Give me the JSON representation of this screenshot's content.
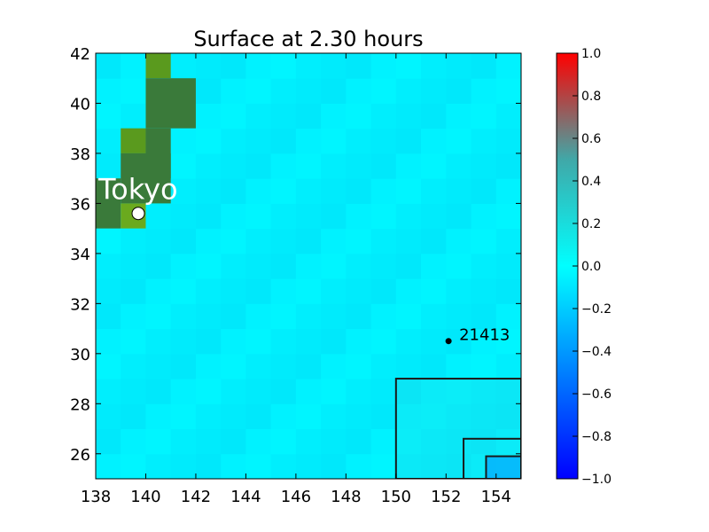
{
  "chart_data": {
    "type": "heatmap",
    "title": "Surface at 2.30 hours",
    "xlabel": "",
    "ylabel": "",
    "xlim": [
      138,
      155
    ],
    "ylim": [
      25,
      42
    ],
    "xticks": [
      "138",
      "140",
      "142",
      "144",
      "146",
      "148",
      "150",
      "152",
      "154"
    ],
    "yticks": [
      "26",
      "28",
      "30",
      "32",
      "34",
      "36",
      "38",
      "40",
      "42"
    ],
    "colorbar": {
      "range": [
        -1.0,
        1.0
      ],
      "ticks": [
        "1.0",
        "0.8",
        "0.6",
        "0.4",
        "0.2",
        "0.0",
        "−0.2",
        "−0.4",
        "−0.6",
        "−0.8",
        "−1.0"
      ],
      "colors": {
        "min": "#0000ff",
        "mid": "#00ffff",
        "max": "#ff0000"
      }
    },
    "background_color": "#00f0ff",
    "land_cells": [
      {
        "x0": 140,
        "x1": 141,
        "y0": 41,
        "y1": 42,
        "color": "#5a9a1e"
      },
      {
        "x0": 140,
        "x1": 142,
        "y0": 39,
        "y1": 41,
        "color": "#3a7a3a"
      },
      {
        "x0": 139,
        "x1": 140,
        "y0": 38,
        "y1": 39,
        "color": "#5a9a1e"
      },
      {
        "x0": 140,
        "x1": 141,
        "y0": 37,
        "y1": 39,
        "color": "#3a7a3a"
      },
      {
        "x0": 139,
        "x1": 141,
        "y0": 36,
        "y1": 38,
        "color": "#3a7a3a"
      },
      {
        "x0": 138,
        "x1": 139,
        "y0": 35,
        "y1": 37,
        "color": "#3a7a3a"
      },
      {
        "x0": 139,
        "x1": 140,
        "y0": 35,
        "y1": 36,
        "color": "#6aaa1e"
      }
    ],
    "annotations": [
      {
        "label": "Tokyo",
        "x": 139.7,
        "y": 35.6,
        "marker": "circle-large",
        "text_color": "#ffffff"
      },
      {
        "label": "21413",
        "x": 152.1,
        "y": 30.5,
        "marker": "dot",
        "text_color": "#000000"
      }
    ],
    "grid_boxes": [
      {
        "x0": 150.0,
        "x1": 155.0,
        "y0": 25.0,
        "y1": 29.0
      },
      {
        "x0": 152.7,
        "x1": 155.0,
        "y0": 25.0,
        "y1": 26.6
      },
      {
        "x0": 153.6,
        "x1": 155.0,
        "y0": 25.0,
        "y1": 25.9
      }
    ]
  }
}
